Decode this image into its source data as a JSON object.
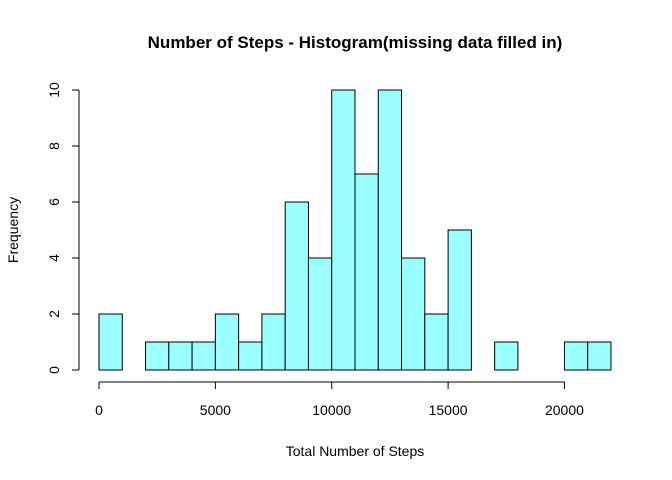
{
  "chart_data": {
    "type": "bar",
    "title": "Number of Steps - Histogram(missing data filled in)",
    "xlabel": "Total Number of Steps",
    "ylabel": "Frequency",
    "bin_width": 1000,
    "bins": [
      {
        "start": 0,
        "end": 1000,
        "count": 2
      },
      {
        "start": 1000,
        "end": 2000,
        "count": 0
      },
      {
        "start": 2000,
        "end": 3000,
        "count": 1
      },
      {
        "start": 3000,
        "end": 4000,
        "count": 1
      },
      {
        "start": 4000,
        "end": 5000,
        "count": 1
      },
      {
        "start": 5000,
        "end": 6000,
        "count": 2
      },
      {
        "start": 6000,
        "end": 7000,
        "count": 1
      },
      {
        "start": 7000,
        "end": 8000,
        "count": 2
      },
      {
        "start": 8000,
        "end": 9000,
        "count": 6
      },
      {
        "start": 9000,
        "end": 10000,
        "count": 4
      },
      {
        "start": 10000,
        "end": 11000,
        "count": 10
      },
      {
        "start": 11000,
        "end": 12000,
        "count": 7
      },
      {
        "start": 12000,
        "end": 13000,
        "count": 10
      },
      {
        "start": 13000,
        "end": 14000,
        "count": 4
      },
      {
        "start": 14000,
        "end": 15000,
        "count": 2
      },
      {
        "start": 15000,
        "end": 16000,
        "count": 5
      },
      {
        "start": 16000,
        "end": 17000,
        "count": 0
      },
      {
        "start": 17000,
        "end": 18000,
        "count": 1
      },
      {
        "start": 18000,
        "end": 19000,
        "count": 0
      },
      {
        "start": 19000,
        "end": 20000,
        "count": 0
      },
      {
        "start": 20000,
        "end": 21000,
        "count": 1
      },
      {
        "start": 21000,
        "end": 22000,
        "count": 1
      }
    ],
    "xlim": [
      0,
      22000
    ],
    "ylim": [
      0,
      10
    ],
    "x_ticks": [
      0,
      5000,
      10000,
      15000,
      20000
    ],
    "y_ticks": [
      0,
      2,
      4,
      6,
      8,
      10
    ],
    "grid": false,
    "legend": "none",
    "bar_color": "#99FFFF",
    "bar_stroke": "#000000"
  }
}
